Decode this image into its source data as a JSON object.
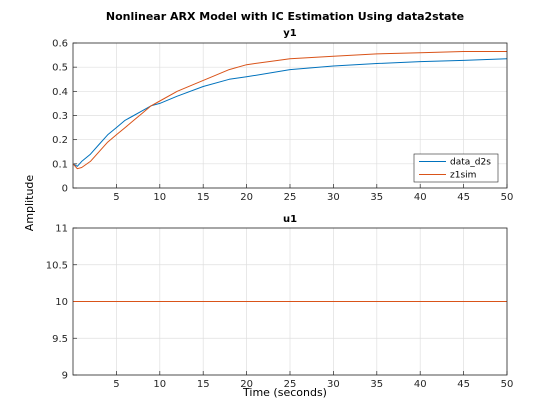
{
  "chart_data": {
    "type": "line",
    "title": "Nonlinear ARX Model with IC Estimation Using data2state",
    "xlabel": "Time (seconds)",
    "ylabel": "Amplitude",
    "legend_position": "inside-lower-right",
    "grid": true,
    "colors": {
      "data_d2s": "#0072BD",
      "z1sim": "#D95319"
    },
    "subplots": [
      {
        "title": "y1",
        "xlim": [
          0,
          50
        ],
        "ylim": [
          0,
          0.6
        ],
        "xticks": [
          "5",
          "10",
          "15",
          "20",
          "25",
          "30",
          "35",
          "40",
          "45",
          "50"
        ],
        "yticks": [
          "0",
          "0.1",
          "0.2",
          "0.3",
          "0.4",
          "0.5",
          "0.6"
        ],
        "legend": [
          "data_d2s",
          "z1sim"
        ],
        "series": [
          {
            "name": "data_d2s",
            "x": [
              0,
              0.5,
              1,
              2,
              3,
              4,
              5,
              6,
              7,
              8,
              9,
              10,
              12,
              15,
              18,
              20,
              25,
              30,
              35,
              40,
              45,
              50
            ],
            "y": [
              0.1,
              0.09,
              0.11,
              0.14,
              0.18,
              0.22,
              0.25,
              0.28,
              0.3,
              0.32,
              0.34,
              0.35,
              0.38,
              0.42,
              0.45,
              0.46,
              0.49,
              0.505,
              0.515,
              0.523,
              0.528,
              0.535
            ]
          },
          {
            "name": "z1sim",
            "x": [
              0,
              0.5,
              1,
              2,
              3,
              4,
              5,
              6,
              7,
              8,
              9,
              10,
              12,
              14,
              16,
              18,
              20,
              23,
              25,
              30,
              35,
              40,
              45,
              50
            ],
            "y": [
              0.1,
              0.08,
              0.085,
              0.11,
              0.15,
              0.19,
              0.22,
              0.25,
              0.28,
              0.31,
              0.34,
              0.36,
              0.4,
              0.43,
              0.46,
              0.49,
              0.51,
              0.525,
              0.535,
              0.545,
              0.555,
              0.56,
              0.565,
              0.565
            ]
          }
        ]
      },
      {
        "title": "u1",
        "xlim": [
          0,
          50
        ],
        "ylim": [
          9,
          11
        ],
        "xticks": [
          "5",
          "10",
          "15",
          "20",
          "25",
          "30",
          "35",
          "40",
          "45",
          "50"
        ],
        "yticks": [
          "9",
          "9.5",
          "10",
          "10.5",
          "11"
        ],
        "series": [
          {
            "name": "data_d2s",
            "x": [
              0,
              50
            ],
            "y": [
              10,
              10
            ]
          },
          {
            "name": "z1sim",
            "x": [
              0,
              50
            ],
            "y": [
              10,
              10
            ]
          }
        ]
      }
    ]
  }
}
